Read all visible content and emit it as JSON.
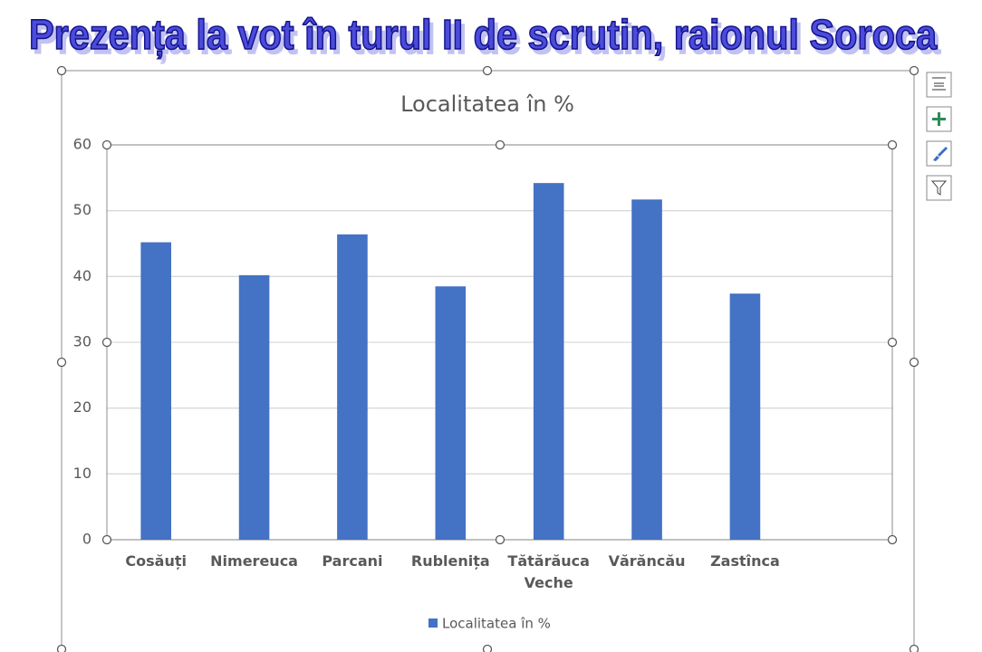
{
  "header": {
    "title": "Prezența la vot în turul II de scrutin, raionul Soroca"
  },
  "chart_data": {
    "type": "bar",
    "title": "Localitatea în %",
    "categories": [
      "Cosăuți",
      "Nimereuca",
      "Parcani",
      "Rublenița",
      "Tătărăuca Veche",
      "Vărăncău",
      "Zastînca",
      null
    ],
    "series": [
      {
        "name": "Localitatea în %",
        "color": "#4472c4",
        "values": [
          45.2,
          40.2,
          46.4,
          38.5,
          54.2,
          51.7,
          37.4,
          null
        ]
      }
    ],
    "ylim": [
      0,
      60
    ],
    "yticks": [
      0,
      10,
      20,
      30,
      40,
      50,
      60
    ],
    "grid": true,
    "legend": "bottom"
  }
}
